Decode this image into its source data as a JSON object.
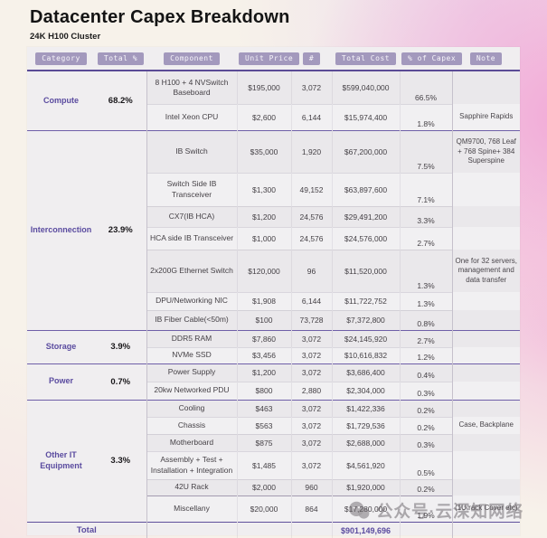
{
  "page": {
    "title": "Datacenter Capex Breakdown",
    "subtitle": "24K H100 Cluster"
  },
  "table": {
    "headers": [
      "Category",
      "Total %",
      "Component",
      "Unit Price",
      "#",
      "Total Cost",
      "% of Capex",
      "Note"
    ],
    "categories": [
      {
        "name": "Compute",
        "total_pct": "68.2%",
        "rows": [
          {
            "component": "8 H100 + 4 NVSwitch Baseboard",
            "unit_price": "$195,000",
            "count": "3,072",
            "total_cost": "$599,040,000",
            "capex_pct": "66.5%",
            "note": ""
          },
          {
            "component": "Intel Xeon CPU",
            "unit_price": "$2,600",
            "count": "6,144",
            "total_cost": "$15,974,400",
            "capex_pct": "1.8%",
            "note": "Sapphire Rapids"
          }
        ]
      },
      {
        "name": "Interconnection",
        "total_pct": "23.9%",
        "rows": [
          {
            "component": "IB Switch",
            "unit_price": "$35,000",
            "count": "1,920",
            "total_cost": "$67,200,000",
            "capex_pct": "7.5%",
            "note": "QM9700, 768 Leaf + 768 Spine+ 384 Superspine"
          },
          {
            "component": "Switch Side IB Transceiver",
            "unit_price": "$1,300",
            "count": "49,152",
            "total_cost": "$63,897,600",
            "capex_pct": "7.1%",
            "note": ""
          },
          {
            "component": "CX7(IB HCA)",
            "unit_price": "$1,200",
            "count": "24,576",
            "total_cost": "$29,491,200",
            "capex_pct": "3.3%",
            "note": ""
          },
          {
            "component": "HCA side IB Transceiver",
            "unit_price": "$1,000",
            "count": "24,576",
            "total_cost": "$24,576,000",
            "capex_pct": "2.7%",
            "note": ""
          },
          {
            "component": "2x200G Ethernet Switch",
            "unit_price": "$120,000",
            "count": "96",
            "total_cost": "$11,520,000",
            "capex_pct": "1.3%",
            "note": "One for 32 servers, management and data transfer"
          },
          {
            "component": "DPU/Networking NIC",
            "unit_price": "$1,908",
            "count": "6,144",
            "total_cost": "$11,722,752",
            "capex_pct": "1.3%",
            "note": ""
          },
          {
            "component": "IB Fiber Cable(<50m)",
            "unit_price": "$100",
            "count": "73,728",
            "total_cost": "$7,372,800",
            "capex_pct": "0.8%",
            "note": ""
          }
        ]
      },
      {
        "name": "Storage",
        "total_pct": "3.9%",
        "rows": [
          {
            "component": "DDR5 RAM",
            "unit_price": "$7,860",
            "count": "3,072",
            "total_cost": "$24,145,920",
            "capex_pct": "2.7%",
            "note": ""
          },
          {
            "component": "NVMe SSD",
            "unit_price": "$3,456",
            "count": "3,072",
            "total_cost": "$10,616,832",
            "capex_pct": "1.2%",
            "note": ""
          }
        ]
      },
      {
        "name": "Power",
        "total_pct": "0.7%",
        "rows": [
          {
            "component": "Power Supply",
            "unit_price": "$1,200",
            "count": "3,072",
            "total_cost": "$3,686,400",
            "capex_pct": "0.4%",
            "note": ""
          },
          {
            "component": "20kw Networked PDU",
            "unit_price": "$800",
            "count": "2,880",
            "total_cost": "$2,304,000",
            "capex_pct": "0.3%",
            "note": ""
          }
        ]
      },
      {
        "name": "Other IT Equipment",
        "total_pct": "3.3%",
        "rows": [
          {
            "component": "Cooling",
            "unit_price": "$463",
            "count": "3,072",
            "total_cost": "$1,422,336",
            "capex_pct": "0.2%",
            "note": ""
          },
          {
            "component": "Chassis",
            "unit_price": "$563",
            "count": "3,072",
            "total_cost": "$1,729,536",
            "capex_pct": "0.2%",
            "note": "Case, Backplane"
          },
          {
            "component": "Motherboard",
            "unit_price": "$875",
            "count": "3,072",
            "total_cost": "$2,688,000",
            "capex_pct": "0.3%",
            "note": ""
          },
          {
            "component": "Assembly + Test + Installation + Integration",
            "unit_price": "$1,485",
            "count": "3,072",
            "total_cost": "$4,561,920",
            "capex_pct": "0.5%",
            "note": ""
          },
          {
            "component": "42U Rack",
            "unit_price": "$2,000",
            "count": "960",
            "total_cost": "$1,920,000",
            "capex_pct": "0.2%",
            "note": ""
          },
          {
            "component": "Miscellany",
            "unit_price": "$20,000",
            "count": "864",
            "total_cost": "$17,280,000",
            "capex_pct": "1.9%",
            "note": "(1U rack Cover etc)"
          }
        ]
      }
    ],
    "total": {
      "label": "Total",
      "total_cost": "$901,149,696"
    }
  },
  "watermark": {
    "text": "公众号·云深知网络",
    "icon": "wechat-logo-icon"
  },
  "colors": {
    "accent_purple": "#5a4b9f",
    "badge_bg": "#a399bd",
    "separator_purple": "#6f5fa8",
    "card_bg": "#f0eef0",
    "page_pink": "#f2a6d6",
    "page_cream": "#f7f2ea"
  }
}
